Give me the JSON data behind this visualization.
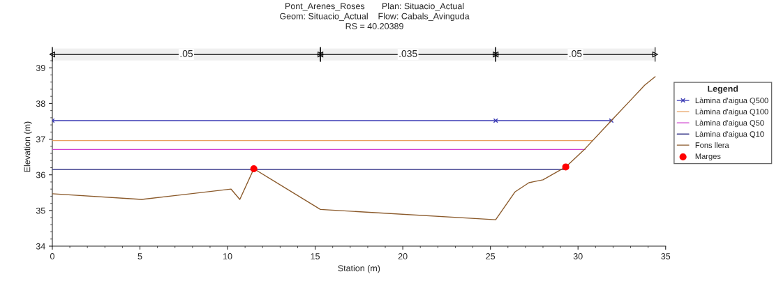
{
  "chart_data": {
    "type": "line",
    "title": "Pont_Arenes_Roses       Plan: Situacio_Actual\nGeom: Situacio_Actual    Flow: Cabals_Avinguda\nRS = 40.20389",
    "xlabel": "Station (m)",
    "ylabel": "Elevation (m)",
    "legend_title": "Legend",
    "series": [
      {
        "name": "Làmina d'aigua Q500",
        "color": "#3a3ab4",
        "x": [
          0,
          25.3,
          31.9
        ],
        "values": [
          37.52,
          37.52,
          37.52
        ],
        "marker": "cross"
      },
      {
        "name": "Làmina d'aigua Q100",
        "color": "#e8a060",
        "x": [
          0,
          30.8
        ],
        "values": [
          36.96,
          36.96
        ]
      },
      {
        "name": "Làmina d'aigua Q50",
        "color": "#d040d0",
        "x": [
          0,
          30.4
        ],
        "values": [
          36.71,
          36.71
        ]
      },
      {
        "name": "Làmina d'aigua Q10",
        "color": "#3c3c8c",
        "x": [
          0,
          29.2
        ],
        "values": [
          36.15,
          36.15
        ]
      },
      {
        "name": "Fons llera",
        "color": "#8b5a2b",
        "x": [
          0,
          5.1,
          10.2,
          10.7,
          11.5,
          15.3,
          25.3,
          26.4,
          27.2,
          28.0,
          29.3,
          30.4,
          31.9,
          32.9,
          33.8,
          34.4
        ],
        "values": [
          35.47,
          35.31,
          35.6,
          35.31,
          36.17,
          35.03,
          34.74,
          35.52,
          35.78,
          35.86,
          36.22,
          36.73,
          37.52,
          38.04,
          38.51,
          38.75
        ]
      },
      {
        "name": "Marges",
        "type": "scatter",
        "color": "#ff0000",
        "x": [
          11.5,
          29.3
        ],
        "values": [
          36.17,
          36.22
        ],
        "marker": "circle"
      }
    ],
    "bands": [
      {
        "axis": "x",
        "from": 0,
        "to": 15.3,
        "label": ".05",
        "color": "#000000"
      },
      {
        "axis": "x",
        "from": 15.3,
        "to": 25.3,
        "label": ".035",
        "color": "#000000"
      },
      {
        "axis": "x",
        "from": 25.3,
        "to": 34.4,
        "label": ".05",
        "color": "#000000"
      }
    ],
    "xlim": [
      0,
      35
    ],
    "xticks": [
      0,
      5,
      10,
      15,
      20,
      25,
      30,
      35
    ],
    "ylim": [
      34,
      39.57
    ],
    "yticks": [
      34,
      35,
      36,
      37,
      38,
      39
    ],
    "grid": false,
    "legend": "right"
  }
}
